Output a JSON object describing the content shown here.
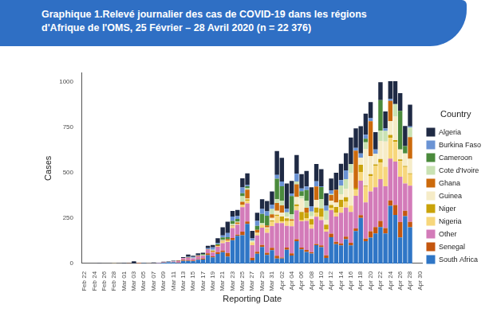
{
  "chart_data": {
    "type": "bar",
    "title": "Graphique 1.Relevé journalier des cas de COVID-19 dans les régions d'Afrique de l'OMS, 25 Février – 28 Avril 2020 (n = 22 376)",
    "x_label": "Reporting Date",
    "y_label": "Cases",
    "legend_title": "Country",
    "legend": "right",
    "stacked": true,
    "grid": false,
    "ylim": [
      0,
      1050
    ],
    "yticks": [
      0,
      250,
      500,
      750,
      1000
    ],
    "categories": [
      "Feb 22",
      null,
      "Feb 24",
      null,
      "Feb 26",
      null,
      "Feb 28",
      null,
      "Mar 01",
      null,
      "Mar 03",
      null,
      "Mar 05",
      null,
      "Mar 07",
      null,
      "Mar 09",
      null,
      "Mar 11",
      null,
      "Mar 13",
      null,
      "Mar 15",
      null,
      "Mar 17",
      null,
      "Mar 19",
      null,
      "Mar 21",
      null,
      "Mar 23",
      null,
      "Mar 25",
      null,
      "Mar 27",
      null,
      "Mar 29",
      null,
      "Mar 31",
      null,
      "Apr 02",
      null,
      "Apr 04",
      null,
      "Apr 06",
      null,
      "Apr 08",
      null,
      "Apr 10",
      null,
      "Apr 12",
      null,
      "Apr 14",
      null,
      "Apr 16",
      null,
      "Apr 18",
      null,
      "Apr 20",
      null,
      "Apr 22",
      null,
      "Apr 24",
      null,
      "Apr 26",
      null,
      "Apr 28",
      null,
      "Apr 30"
    ],
    "series": [
      {
        "name": "Algeria",
        "color": "#1f2a44",
        "values": [
          0,
          0,
          0,
          1,
          0,
          0,
          0,
          0,
          2,
          2,
          12,
          0,
          1,
          0,
          3,
          0,
          2,
          3,
          3,
          2,
          5,
          12,
          6,
          10,
          8,
          13,
          14,
          25,
          45,
          62,
          30,
          34,
          50,
          65,
          42,
          45,
          54,
          57,
          73,
          132,
          131,
          139,
          69,
          103,
          80,
          86,
          104,
          95,
          94,
          69,
          64,
          94,
          90,
          95,
          146,
          108,
          150,
          116,
          89,
          95,
          99,
          93,
          97,
          126,
          97,
          111,
          120,
          0,
          0
        ]
      },
      {
        "name": "Burkina Faso",
        "color": "#6a93d4",
        "values": [
          0,
          0,
          0,
          0,
          0,
          0,
          0,
          0,
          0,
          0,
          0,
          0,
          0,
          0,
          0,
          0,
          0,
          2,
          0,
          0,
          0,
          5,
          5,
          4,
          0,
          7,
          13,
          7,
          11,
          23,
          24,
          15,
          32,
          7,
          12,
          28,
          27,
          24,
          24,
          21,
          26,
          20,
          14,
          43,
          15,
          19,
          30,
          29,
          5,
          28,
          21,
          0,
          30,
          48,
          0,
          15,
          23,
          22,
          16,
          24,
          0,
          14,
          12,
          0,
          0,
          0,
          7,
          0,
          0
        ]
      },
      {
        "name": "Cameroon",
        "color": "#4a8a3c",
        "values": [
          0,
          0,
          0,
          0,
          0,
          0,
          0,
          0,
          0,
          0,
          0,
          0,
          0,
          1,
          0,
          0,
          0,
          0,
          0,
          0,
          0,
          0,
          0,
          0,
          5,
          0,
          0,
          6,
          13,
          11,
          16,
          16,
          16,
          11,
          0,
          22,
          49,
          54,
          0,
          113,
          80,
          0,
          100,
          0,
          25,
          60,
          0,
          0,
          66,
          0,
          0,
          0,
          0,
          0,
          0,
          0,
          0,
          20,
          0,
          0,
          168,
          0,
          0,
          0,
          213,
          40,
          0,
          0,
          0
        ]
      },
      {
        "name": "Cote d'Ivoire",
        "color": "#c9e2b3",
        "values": [
          0,
          0,
          0,
          0,
          0,
          0,
          0,
          0,
          0,
          0,
          0,
          0,
          0,
          0,
          0,
          0,
          0,
          0,
          1,
          0,
          0,
          0,
          3,
          0,
          3,
          0,
          5,
          0,
          5,
          0,
          11,
          4,
          31,
          7,
          7,
          0,
          11,
          0,
          29,
          21,
          26,
          24,
          29,
          16,
          16,
          38,
          26,
          0,
          51,
          51,
          6,
          0,
          48,
          54,
          50,
          0,
          0,
          37,
          0,
          0,
          57,
          58,
          0,
          69,
          0,
          0,
          52,
          0,
          0
        ]
      },
      {
        "name": "Ghana",
        "color": "#cc6a0c",
        "values": [
          0,
          0,
          0,
          0,
          0,
          0,
          0,
          0,
          0,
          0,
          0,
          0,
          0,
          0,
          0,
          0,
          0,
          0,
          0,
          2,
          0,
          2,
          0,
          4,
          0,
          2,
          5,
          5,
          4,
          8,
          3,
          8,
          15,
          50,
          0,
          15,
          0,
          11,
          20,
          43,
          40,
          0,
          9,
          70,
          0,
          27,
          0,
          73,
          0,
          0,
          30,
          70,
          0,
          0,
          0,
          205,
          0,
          0,
          193,
          0,
          0,
          0,
          112,
          0,
          0,
          0,
          120,
          0,
          0
        ]
      },
      {
        "name": "Guinea",
        "color": "#f6ecc8",
        "values": [
          0,
          0,
          0,
          0,
          0,
          0,
          0,
          0,
          0,
          0,
          0,
          0,
          0,
          0,
          0,
          0,
          0,
          0,
          0,
          0,
          1,
          0,
          0,
          0,
          0,
          0,
          0,
          0,
          0,
          0,
          0,
          0,
          2,
          4,
          2,
          2,
          0,
          6,
          14,
          22,
          21,
          9,
          0,
          40,
          73,
          0,
          16,
          43,
          0,
          25,
          25,
          25,
          31,
          46,
          180,
          0,
          40,
          202,
          100,
          59,
          100,
          140,
          75,
          130,
          55,
          70,
          80,
          0,
          0
        ]
      },
      {
        "name": "Niger",
        "color": "#c9a30a",
        "values": [
          0,
          0,
          0,
          0,
          0,
          0,
          0,
          0,
          0,
          0,
          0,
          0,
          0,
          0,
          0,
          0,
          0,
          0,
          0,
          0,
          0,
          0,
          0,
          0,
          0,
          0,
          0,
          0,
          0,
          0,
          0,
          0,
          2,
          8,
          0,
          3,
          0,
          3,
          7,
          7,
          27,
          16,
          0,
          11,
          46,
          30,
          30,
          29,
          48,
          26,
          15,
          32,
          41,
          23,
          0,
          9,
          39,
          6,
          9,
          9,
          20,
          0,
          17,
          10,
          9,
          5,
          4,
          0,
          0
        ]
      },
      {
        "name": "Nigeria",
        "color": "#f7d77c",
        "values": [
          0,
          0,
          0,
          0,
          0,
          0,
          1,
          0,
          0,
          0,
          0,
          0,
          0,
          0,
          0,
          0,
          0,
          0,
          0,
          0,
          0,
          0,
          0,
          0,
          1,
          0,
          4,
          4,
          10,
          8,
          10,
          4,
          11,
          14,
          16,
          11,
          16,
          20,
          24,
          39,
          10,
          26,
          29,
          22,
          6,
          16,
          22,
          22,
          17,
          13,
          13,
          20,
          30,
          34,
          35,
          35,
          49,
          86,
          86,
          117,
          91,
          108,
          114,
          108,
          87,
          91,
          64,
          0,
          0
        ]
      },
      {
        "name": "Other",
        "color": "#d37bb9",
        "values": [
          0,
          0,
          0,
          0,
          0,
          0,
          0,
          0,
          0,
          0,
          0,
          1,
          0,
          1,
          0,
          2,
          2,
          0,
          4,
          8,
          10,
          12,
          12,
          14,
          15,
          20,
          22,
          30,
          40,
          60,
          55,
          55,
          135,
          100,
          70,
          90,
          95,
          110,
          120,
          180,
          190,
          120,
          150,
          160,
          145,
          160,
          130,
          150,
          140,
          130,
          130,
          140,
          170,
          160,
          170,
          180,
          190,
          200,
          220,
          220,
          230,
          230,
          230,
          240,
          250,
          150,
          200,
          0,
          0
        ]
      },
      {
        "name": "Senegal",
        "color": "#c4560f",
        "values": [
          0,
          0,
          0,
          0,
          0,
          0,
          0,
          0,
          0,
          1,
          0,
          2,
          0,
          0,
          1,
          0,
          1,
          0,
          1,
          2,
          5,
          4,
          3,
          4,
          5,
          9,
          5,
          10,
          9,
          20,
          12,
          7,
          20,
          13,
          14,
          11,
          11,
          12,
          13,
          15,
          5,
          12,
          12,
          10,
          10,
          11,
          8,
          7,
          9,
          15,
          19,
          13,
          11,
          15,
          15,
          15,
          15,
          15,
          35,
          35,
          35,
          30,
          30,
          55,
          85,
          30,
          30,
          0,
          0
        ]
      },
      {
        "name": "South Africa",
        "color": "#2f76c6",
        "values": [
          0,
          0,
          0,
          0,
          0,
          0,
          0,
          0,
          0,
          0,
          0,
          0,
          1,
          0,
          1,
          1,
          4,
          5,
          6,
          3,
          14,
          14,
          13,
          20,
          22,
          46,
          34,
          52,
          62,
          38,
          128,
          152,
          155,
          218,
          17,
          53,
          91,
          47,
          73,
          27,
          27,
          75,
          43,
          123,
          77,
          63,
          54,
          100,
          90,
          30,
          145,
          106,
          99,
          133,
          99,
          178,
          251,
          122,
          142,
          165,
          200,
          165,
          318,
          267,
          143,
          261,
          199,
          0,
          0
        ]
      }
    ]
  }
}
